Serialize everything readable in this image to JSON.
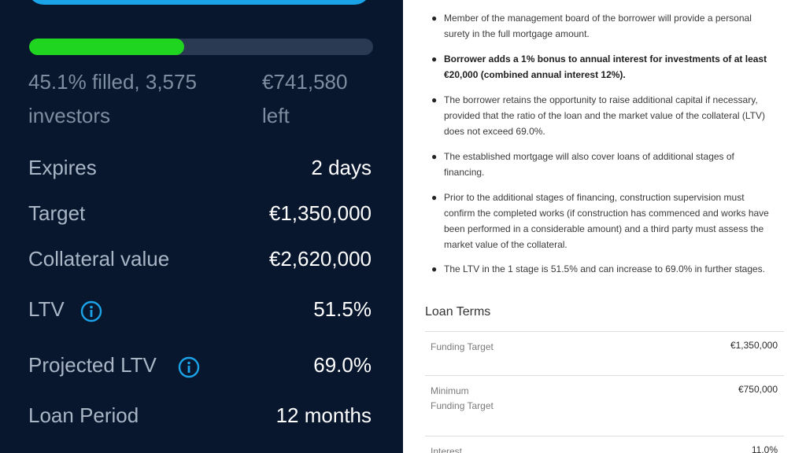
{
  "progress": {
    "filled_fraction": 0.451,
    "fill_color": "#1fd51f",
    "filled_line1": "45.1% filled, 3,575",
    "filled_line2": "investors",
    "left_line1": "€741,580",
    "left_line2": "left"
  },
  "rows": [
    {
      "label": "Expires",
      "value": "2 days"
    },
    {
      "label": "Target",
      "value": "€1,350,000"
    },
    {
      "label": "Collateral value",
      "value": "€2,620,000"
    },
    {
      "label": "LTV",
      "value": "51.5%",
      "icon": "info-icon"
    },
    {
      "label": "Projected LTV",
      "value": "69.0%",
      "icon": "info-icon"
    },
    {
      "label": "Loan Period",
      "value": "12 months"
    }
  ],
  "bullets": [
    {
      "text": "Member of the management board of the borrower will provide a personal surety in the full mortgage amount.",
      "bold": false
    },
    {
      "text": "Borrower adds a 1% bonus to annual interest for investments of at least €20,000 (combined annual interest 12%).",
      "bold": true
    },
    {
      "text": "The borrower retains the opportunity to raise additional capital if necessary, provided that the ratio of the loan and the market value of the collateral (LTV) does not exceed 69.0%.",
      "bold": false
    },
    {
      "text": "The established mortgage will also cover loans of additional stages of financing.",
      "bold": false
    },
    {
      "text": "Prior to the additional stages of financing, construction supervision must confirm the completed works (if construction has commenced and works have been performed in a considerable amount) and a third party must assess the market value of the collateral.",
      "bold": false
    },
    {
      "text": "The LTV in the 1 stage is 51.5% and can increase to 69.0% in further stages.",
      "bold": false
    }
  ],
  "loan_terms": {
    "title": "Loan Terms",
    "rows": [
      {
        "label": "Funding Target",
        "value": "€1,350,000"
      },
      {
        "label": "Minimum Funding Target",
        "value": "€750,000"
      },
      {
        "label": "Interest",
        "value": "11.0%"
      }
    ]
  },
  "colors": {
    "accent": "#1ba3e8",
    "dark_bg": "#08172e",
    "progress": "#1fd51f"
  }
}
